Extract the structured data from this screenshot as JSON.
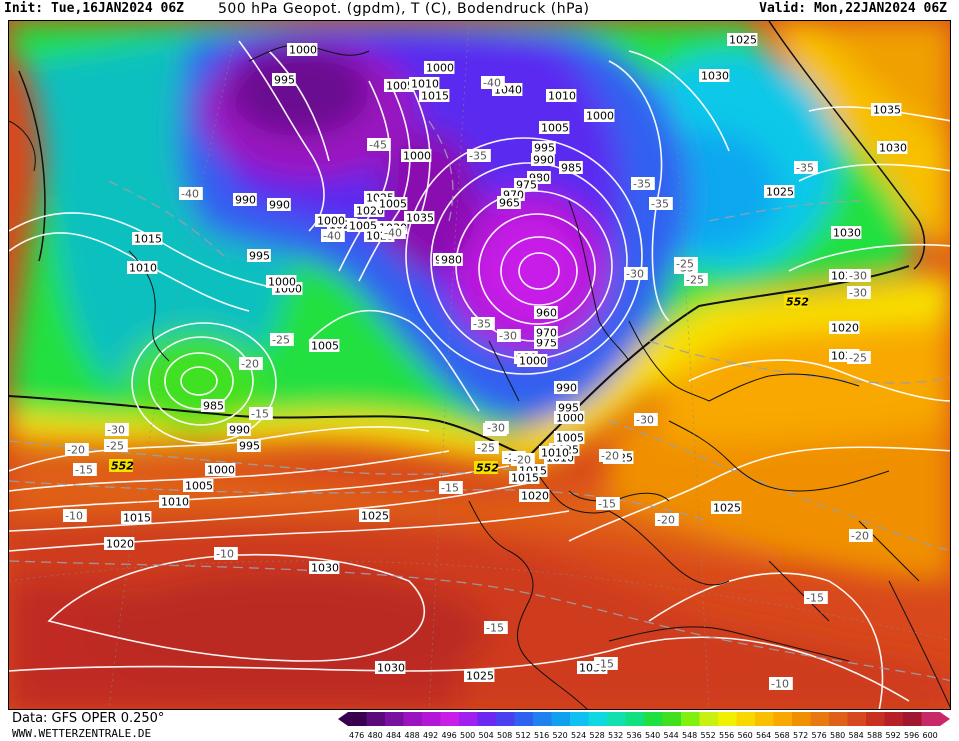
{
  "header": {
    "init": "Init: Tue,16JAN2024 06Z",
    "title": "500 hPa Geopot. (gpdm), T (C), Bodendruck (hPa)",
    "valid": "Valid: Mon,22JAN2024 06Z"
  },
  "footer": {
    "data_source": "Data: GFS OPER 0.250°",
    "website": "WWW.WETTERZENTRALE.DE"
  },
  "legend": {
    "labels": [
      "476",
      "480",
      "484",
      "488",
      "492",
      "496",
      "500",
      "504",
      "508",
      "512",
      "516",
      "520",
      "524",
      "528",
      "532",
      "536",
      "540",
      "544",
      "548",
      "552",
      "556",
      "560",
      "564",
      "568",
      "572",
      "576",
      "580",
      "584",
      "588",
      "592",
      "596",
      "600"
    ],
    "colors": [
      "#3a0050",
      "#5a0a7a",
      "#7a10a0",
      "#9a14c0",
      "#b416d8",
      "#c81ee8",
      "#a020f0",
      "#6a28f0",
      "#4a40f0",
      "#3060f0",
      "#2080f0",
      "#10a0f0",
      "#10c0f0",
      "#10d8e0",
      "#10e0b0",
      "#10e080",
      "#20e040",
      "#40e020",
      "#80f010",
      "#c8f010",
      "#f0f000",
      "#f8d800",
      "#f8c000",
      "#f8a800",
      "#f09000",
      "#e87810",
      "#e06018",
      "#d84820",
      "#c83020",
      "#b82028",
      "#a01830",
      "#c82868"
    ]
  },
  "isobars": [
    {
      "text": "1000"
    },
    {
      "text": "995"
    },
    {
      "text": "1005"
    },
    {
      "text": "1010"
    },
    {
      "text": "1015"
    },
    {
      "text": "1000"
    },
    {
      "text": "1040"
    },
    {
      "text": "1010"
    },
    {
      "text": "1005"
    },
    {
      "text": "1000"
    },
    {
      "text": "995"
    },
    {
      "text": "990"
    },
    {
      "text": "985"
    },
    {
      "text": "980"
    },
    {
      "text": "975"
    },
    {
      "text": "970"
    },
    {
      "text": "965"
    },
    {
      "text": "1025"
    },
    {
      "text": "1020"
    },
    {
      "text": "1035"
    },
    {
      "text": "1030"
    },
    {
      "text": "1020"
    },
    {
      "text": "1030"
    },
    {
      "text": "1035"
    },
    {
      "text": "1035"
    },
    {
      "text": "1030"
    },
    {
      "text": "1030"
    },
    {
      "text": "1025"
    },
    {
      "text": "1030"
    },
    {
      "text": "1015"
    },
    {
      "text": "1010"
    },
    {
      "text": "995"
    },
    {
      "text": "990"
    },
    {
      "text": "1000"
    },
    {
      "text": "1005"
    },
    {
      "text": "985"
    },
    {
      "text": "990"
    },
    {
      "text": "995"
    },
    {
      "text": "1000"
    },
    {
      "text": "1005"
    },
    {
      "text": "1010"
    },
    {
      "text": "1015"
    },
    {
      "text": "1020"
    },
    {
      "text": "1025"
    },
    {
      "text": "1030"
    },
    {
      "text": "1030"
    },
    {
      "text": "1025"
    },
    {
      "text": "1030"
    },
    {
      "text": "1025"
    },
    {
      "text": "1025"
    },
    {
      "text": "1020"
    },
    {
      "text": "1015"
    },
    {
      "text": "1010"
    },
    {
      "text": "1005"
    },
    {
      "text": "1000"
    },
    {
      "text": "995"
    },
    {
      "text": "990"
    },
    {
      "text": "980"
    },
    {
      "text": "975"
    },
    {
      "text": "970"
    },
    {
      "text": "960"
    },
    {
      "text": "980"
    },
    {
      "text": "1000"
    },
    {
      "text": "1005"
    },
    {
      "text": "1025"
    },
    {
      "text": "1005"
    },
    {
      "text": "1000"
    },
    {
      "text": "1025"
    },
    {
      "text": "1015"
    },
    {
      "text": "1010"
    },
    {
      "text": "1030"
    },
    {
      "text": "1000"
    },
    {
      "text": "990"
    },
    {
      "text": "1025"
    },
    {
      "text": "1020"
    },
    {
      "text": "1000"
    },
    {
      "text": "980"
    }
  ],
  "isotherms": [
    {
      "text": "-40"
    },
    {
      "text": "-40"
    },
    {
      "text": "-40"
    },
    {
      "text": "-45"
    },
    {
      "text": "-40"
    },
    {
      "text": "-35"
    },
    {
      "text": "-35"
    },
    {
      "text": "-35"
    },
    {
      "text": "-30"
    },
    {
      "text": "-35"
    },
    {
      "text": "-30"
    },
    {
      "text": "-25"
    },
    {
      "text": "-30"
    },
    {
      "text": "-25"
    },
    {
      "text": "-20"
    },
    {
      "text": "-15"
    },
    {
      "text": "-30"
    },
    {
      "text": "-25"
    },
    {
      "text": "-20"
    },
    {
      "text": "-15"
    },
    {
      "text": "-10"
    },
    {
      "text": "-10"
    },
    {
      "text": "-35"
    },
    {
      "text": "-30"
    },
    {
      "text": "-30"
    },
    {
      "text": "-25"
    },
    {
      "text": "-20"
    },
    {
      "text": "-20"
    },
    {
      "text": "-15"
    },
    {
      "text": "-15"
    },
    {
      "text": "-20"
    },
    {
      "text": "-15"
    },
    {
      "text": "-20"
    },
    {
      "text": "-25"
    },
    {
      "text": "-30"
    },
    {
      "text": "-35"
    },
    {
      "text": "-15"
    },
    {
      "text": "-10"
    },
    {
      "text": "-15"
    },
    {
      "text": "-20"
    },
    {
      "text": "-25"
    },
    {
      "text": "-30"
    }
  ],
  "height_labels": [
    {
      "text": "552"
    },
    {
      "text": "552"
    },
    {
      "text": "552"
    }
  ]
}
